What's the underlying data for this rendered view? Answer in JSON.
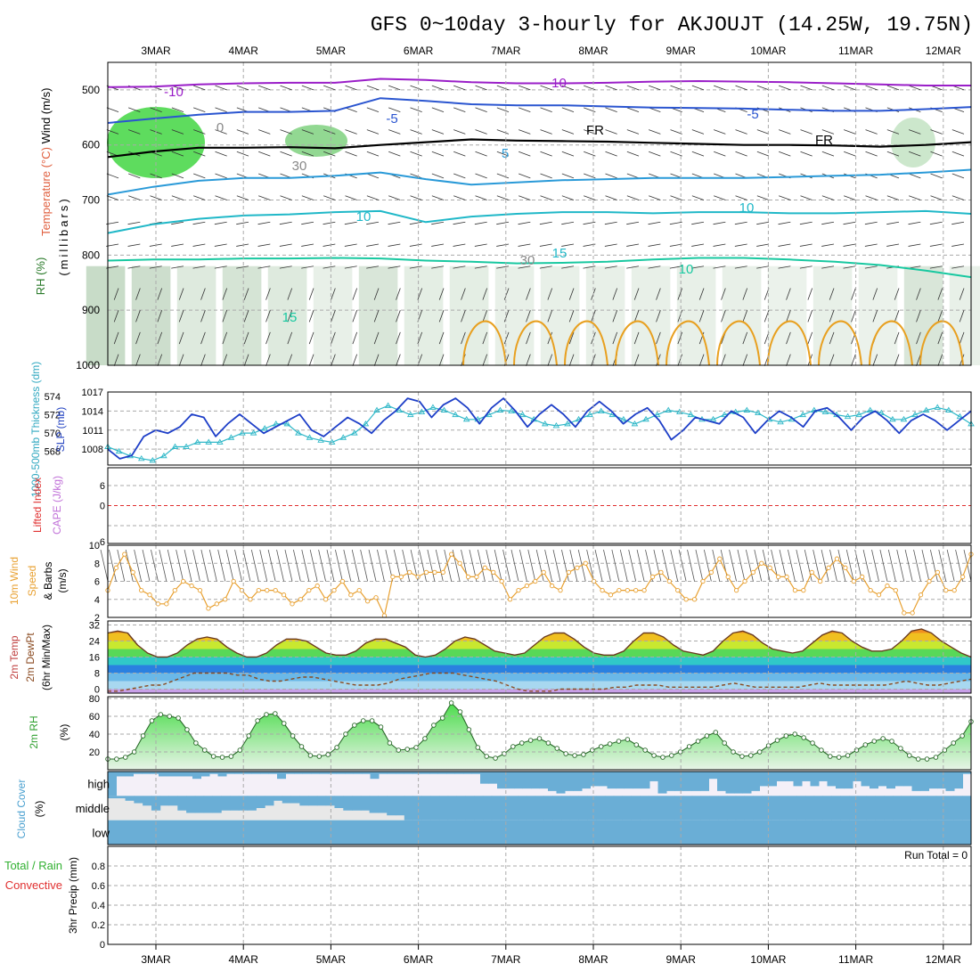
{
  "chart_data": {
    "type": "line",
    "title": "GFS 0~10day 3-hourly for AKJOUJT (14.25W, 19.75N)",
    "x_dates": [
      "3MAR",
      "4MAR",
      "5MAR",
      "6MAR",
      "7MAR",
      "8MAR",
      "9MAR",
      "10MAR",
      "11MAR",
      "12MAR"
    ],
    "panels": {
      "upper_air": {
        "ylabel": "(millibars)",
        "side_labels": [
          "Wind (m/s)",
          "Temperature (°C)",
          "RH (%)"
        ],
        "yticks": [
          500,
          600,
          700,
          800,
          900,
          1000
        ],
        "ylim": [
          450,
          1000
        ],
        "contour_labels": [
          "-10",
          "-10",
          "-5",
          "-5",
          "FR",
          "FR",
          "5",
          "10",
          "10",
          "10",
          "15",
          "15",
          "0",
          "30",
          "30"
        ],
        "isotherms": [
          {
            "label": "-10",
            "color": "#9a1ec8",
            "p": [
              495,
              494,
              490,
              488,
              487,
              487,
              480,
              482,
              486,
              488,
              488,
              487,
              485,
              484,
              485,
              486,
              488,
              490,
              492,
              492
            ]
          },
          {
            "label": "-5",
            "color": "#2a55d0",
            "p": [
              560,
              552,
              545,
              540,
              540,
              538,
              515,
              520,
              526,
              528,
              528,
              530,
              532,
              533,
              534,
              536,
              538,
              538,
              535,
              531
            ]
          },
          {
            "label": "FR",
            "color": "#000000",
            "p": [
              622,
              612,
              605,
              605,
              604,
              606,
              600,
              595,
              590,
              592,
              593,
              594,
              596,
              598,
              600,
              600,
              601,
              603,
              600,
              595
            ]
          },
          {
            "label": "5",
            "color": "#2a9ad8",
            "p": [
              690,
              676,
              665,
              660,
              660,
              656,
              650,
              662,
              672,
              668,
              664,
              662,
              660,
              660,
              660,
              658,
              656,
              654,
              650,
              645
            ]
          },
          {
            "label": "10",
            "color": "#20b8c8",
            "p": [
              760,
              744,
              734,
              728,
              726,
              722,
              720,
              740,
              730,
              725,
              722,
              722,
              724,
              722,
              722,
              724,
              724,
              722,
              720,
              725
            ]
          },
          {
            "label": "15",
            "color": "#18c8a0",
            "p": [
              810,
              808,
              808,
              806,
              806,
              805,
              806,
              810,
              812,
              815,
              814,
              812,
              808,
              805,
              805,
              808,
              812,
              818,
              828,
              840
            ]
          }
        ],
        "rh_region_intensity": [
          0.9,
          0.8,
          0.4,
          0.6,
          0.4,
          0.2,
          0.5,
          0.3,
          0.3,
          0.2,
          0.2,
          0.2,
          0.2,
          0.2,
          0.2,
          0.1,
          0.2,
          0.1,
          0.5,
          0.2
        ]
      },
      "thickness_slp": {
        "ylabel_left": "1000-500mb Thickness (dm)",
        "ylabel_right": "SLP (mb)",
        "thickness_ticks": [
          568,
          570,
          572,
          574
        ],
        "slp_ticks": [
          1008,
          1011,
          1014,
          1017
        ],
        "thickness_range": [
          566.5,
          574.5
        ],
        "slp_range": [
          1005.5,
          1017
        ],
        "thickness": [
          568.5,
          568,
          567.5,
          567.2,
          567,
          567.5,
          568.5,
          568.5,
          569,
          569,
          569,
          569.5,
          570,
          570,
          570.5,
          571,
          571,
          570,
          569.5,
          569.2,
          569,
          569.5,
          570,
          571,
          572.5,
          573,
          572.5,
          572,
          572.3,
          572.8,
          572.5,
          572,
          571.5,
          571.5,
          572,
          572.5,
          572.4,
          572,
          571.5,
          571,
          570.8,
          571,
          571.5,
          572,
          572.4,
          572,
          571.5,
          571,
          571.5,
          572,
          572.5,
          572.3,
          572,
          571.5,
          571.5,
          572,
          572.3,
          572.5,
          572.2,
          571.5,
          571.2,
          571.5,
          572,
          572.5,
          572.3,
          572,
          571.8,
          572,
          572.5,
          572.2,
          571.5,
          571.5,
          572,
          572.5,
          572.8,
          572.5,
          571.8,
          571
        ],
        "slp": [
          1008,
          1006.5,
          1007,
          1010,
          1011,
          1010.5,
          1011.5,
          1013.5,
          1013,
          1010,
          1012,
          1013.5,
          1012,
          1010.5,
          1011.5,
          1012.5,
          1013.5,
          1011,
          1010,
          1011.5,
          1013,
          1012,
          1010.5,
          1012.5,
          1014,
          1016,
          1015.5,
          1013,
          1015,
          1016,
          1014.5,
          1012,
          1014.5,
          1016,
          1014,
          1011.5,
          1013.5,
          1015,
          1013.5,
          1011.5,
          1014,
          1015.5,
          1014,
          1012,
          1013.5,
          1014.5,
          1012.5,
          1009.5,
          1011,
          1013,
          1012.5,
          1012,
          1014,
          1013,
          1010.5,
          1012.5,
          1014,
          1013,
          1011.5,
          1014,
          1014.5,
          1013,
          1011,
          1013,
          1014,
          1012.5,
          1010.5,
          1012.5,
          1013.5,
          1012.5,
          1011,
          1012.5,
          1014
        ]
      },
      "stability": {
        "ylabel": "Lifted Index / CAPE (J/kg)",
        "label_lifted": "Lifted Index",
        "label_cape": "CAPE (J/kg)",
        "yticks": [
          "6",
          "0",
          "6"
        ]
      },
      "wind10m": {
        "ylabel": "10m Wind Speed (m/s) & Barbs",
        "label_a": "10m Wind",
        "label_b": "Speed",
        "label_c": "(m/s)",
        "label_d": "& Barbs",
        "yticks": [
          2,
          4,
          6,
          8,
          10
        ],
        "ylim": [
          2,
          10
        ],
        "speed": [
          5,
          7.5,
          9,
          7,
          5,
          4.5,
          3.5,
          3.5,
          5,
          6,
          5.5,
          5,
          3,
          3.5,
          4,
          6,
          5,
          4,
          5,
          5,
          5,
          4.5,
          3.5,
          4,
          5,
          5.5,
          4,
          5,
          6,
          4.5,
          5,
          3.8,
          4.2,
          2.2,
          6.5,
          6.5,
          7,
          6.5,
          7,
          7,
          7,
          9,
          8,
          6.5,
          6.5,
          7.5,
          7,
          6,
          4,
          5,
          5.5,
          6,
          7,
          5.5,
          5,
          7,
          7.5,
          8,
          6,
          5,
          4.5,
          5,
          5,
          5,
          5,
          6.5,
          7,
          6,
          5,
          4,
          4,
          6,
          7,
          8.5,
          6.5,
          5,
          6,
          7,
          8,
          7.5,
          6.5,
          6.5,
          5,
          5,
          7,
          6,
          7.5,
          8.5,
          7.5,
          6,
          6.5,
          5,
          4.5,
          5.5,
          5,
          2.5,
          2.5,
          4.5,
          6,
          7,
          5,
          5,
          6.5,
          9
        ]
      },
      "temperature": {
        "ylabel": "2m Temp / 2m DewPt / (6hr Min/Max) (°C)",
        "label_a": "2m Temp",
        "label_b": "2m DewPt",
        "label_c": "(6hr Min/Max)",
        "yticks": [
          0,
          8,
          16,
          24,
          32
        ],
        "ylim": [
          -2,
          34
        ],
        "temp": [
          28,
          29,
          28,
          22,
          18,
          16,
          16,
          18,
          22,
          25,
          26,
          25,
          21,
          18,
          16,
          16,
          18,
          22,
          25,
          25,
          24,
          21,
          18,
          17,
          17,
          19,
          23,
          25,
          25,
          23,
          21,
          17,
          16,
          17,
          20,
          24,
          26,
          25,
          22,
          19,
          18,
          17,
          18,
          22,
          26,
          28,
          28,
          25,
          21,
          18,
          17,
          17,
          19,
          24,
          28,
          28,
          26,
          22,
          19,
          18,
          17,
          19,
          24,
          28,
          29,
          27,
          23,
          20,
          19,
          18,
          19,
          23,
          27,
          29,
          28,
          24,
          21,
          19,
          19,
          20,
          24,
          29,
          30,
          28,
          24,
          21,
          18,
          16
        ],
        "dewpt": [
          -1,
          -1,
          0,
          1,
          2,
          2,
          4,
          6,
          8,
          8,
          8,
          8,
          7,
          7,
          5,
          4,
          4,
          5,
          6,
          6,
          5,
          4,
          3,
          2,
          2,
          2,
          3,
          5,
          6,
          7,
          8,
          8,
          8,
          7,
          6,
          5,
          4,
          2,
          0,
          -1,
          -1,
          -1,
          0,
          0,
          0,
          0,
          0,
          1,
          1,
          2,
          2,
          2,
          1,
          1,
          1,
          1,
          1,
          2,
          3,
          2,
          1,
          1,
          1,
          1,
          1,
          2,
          3,
          2,
          2,
          2,
          2,
          2,
          2,
          3,
          4,
          3,
          2,
          2,
          3,
          4,
          5
        ]
      },
      "rh2m": {
        "ylabel": "2m RH (%)",
        "label_a": "2m RH",
        "label_b": "(%)",
        "yticks": [
          20,
          40,
          60,
          80
        ],
        "ylim": [
          0,
          82
        ],
        "values": [
          12,
          12,
          14,
          20,
          38,
          55,
          62,
          60,
          58,
          45,
          30,
          22,
          15,
          14,
          15,
          22,
          38,
          55,
          62,
          63,
          52,
          38,
          26,
          16,
          15,
          17,
          25,
          40,
          50,
          55,
          55,
          48,
          30,
          22,
          23,
          25,
          35,
          50,
          58,
          75,
          65,
          45,
          25,
          15,
          13,
          18,
          26,
          30,
          33,
          35,
          30,
          24,
          18,
          16,
          17,
          22,
          26,
          29,
          32,
          34,
          28,
          22,
          16,
          14,
          16,
          20,
          26,
          32,
          38,
          42,
          30,
          20,
          15,
          16,
          20,
          27,
          33,
          38,
          40,
          36,
          30,
          22,
          15,
          14,
          16,
          22,
          28,
          32,
          35,
          32,
          24,
          16,
          12,
          12,
          14,
          22,
          30,
          38,
          54
        ]
      },
      "cloud": {
        "ylabel": "Cloud Cover (%)",
        "label_a": "Cloud Cover",
        "label_b": "(%)",
        "levels": [
          "high",
          "middle",
          "low"
        ],
        "high": [
          100,
          20,
          20,
          10,
          10,
          10,
          20,
          20,
          20,
          20,
          30,
          20,
          10,
          20,
          10,
          10,
          10,
          10,
          10,
          10,
          30,
          10,
          10,
          10,
          10,
          10,
          10,
          10,
          10,
          10,
          10,
          30,
          10,
          10,
          10,
          10,
          10,
          10,
          10,
          10,
          10,
          10,
          10,
          10,
          50,
          50,
          70,
          70,
          70,
          70,
          70,
          70,
          80,
          90,
          80,
          80,
          70,
          60,
          60,
          70,
          70,
          70,
          70,
          70,
          40,
          90,
          80,
          80,
          80,
          80,
          80,
          30,
          80,
          90,
          90,
          90,
          80,
          60,
          60,
          40,
          40,
          60,
          40,
          60,
          40,
          60,
          70,
          70,
          40,
          60,
          70,
          60,
          70,
          60,
          60,
          80,
          80,
          70,
          70,
          80,
          70,
          10
        ],
        "middle": [
          10,
          10,
          20,
          30,
          40,
          60,
          40,
          40,
          60,
          70,
          70,
          70,
          70,
          60,
          60,
          60,
          60,
          50,
          40,
          20,
          30,
          30,
          40,
          40,
          40,
          40,
          50,
          60,
          60,
          60,
          70,
          70,
          80,
          80,
          100,
          100,
          100,
          100,
          100,
          100,
          100,
          100,
          100,
          100,
          100,
          100,
          100,
          100,
          100,
          100,
          100,
          100,
          100,
          100,
          100,
          100,
          100,
          100,
          100,
          100,
          100,
          100,
          100,
          100,
          100,
          100,
          100,
          100,
          100,
          100,
          100,
          100,
          100,
          100,
          100,
          100,
          100,
          100,
          100,
          100,
          100,
          100,
          100,
          100,
          100,
          100,
          100,
          100,
          100,
          100,
          100,
          100,
          100,
          100,
          100,
          100,
          100,
          100,
          100
        ],
        "low": 100
      },
      "precip": {
        "ylabel": "3hr Precip (mm)",
        "label_total": "Total / Rain",
        "label_conv": "Convective",
        "label_units": "3hr Precip (mm)",
        "yticks": [
          "0",
          "0.2",
          "0.4",
          "0.6",
          "0.8"
        ],
        "ylim": [
          0,
          1
        ],
        "run_total_label": "Run Total = 0",
        "values": []
      }
    },
    "colors": {
      "thickness": "#30b8c8",
      "slp": "#1e3fc8",
      "wind_speed": "#e8a030",
      "dewpt": "#8a4a20",
      "rh_fill": "#3cc83c",
      "cloud_fill": "#6aaed6",
      "lifted_zero": "#e03030"
    }
  }
}
